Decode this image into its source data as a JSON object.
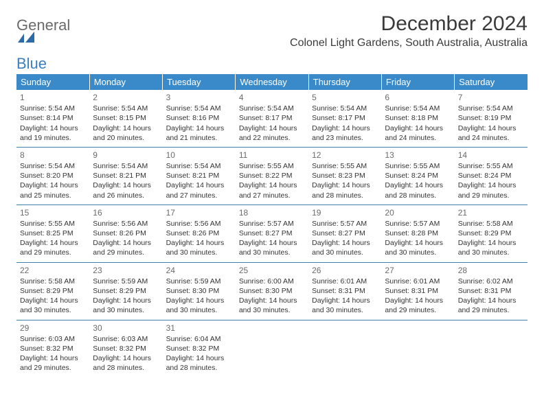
{
  "logo": {
    "part1": "General",
    "part2": "Blue"
  },
  "title": "December 2024",
  "subtitle": "Colonel Light Gardens, South Australia, Australia",
  "colors": {
    "header_bg": "#3a8ac9",
    "header_text": "#ffffff",
    "border": "#3a7fb0",
    "logo_gray": "#6a6a6a",
    "logo_blue": "#3a7fc0",
    "body_text": "#333333",
    "background": "#ffffff"
  },
  "weekdays": [
    "Sunday",
    "Monday",
    "Tuesday",
    "Wednesday",
    "Thursday",
    "Friday",
    "Saturday"
  ],
  "days": [
    {
      "n": 1,
      "sr": "5:54 AM",
      "ss": "8:14 PM",
      "dl": "14 hours and 19 minutes."
    },
    {
      "n": 2,
      "sr": "5:54 AM",
      "ss": "8:15 PM",
      "dl": "14 hours and 20 minutes."
    },
    {
      "n": 3,
      "sr": "5:54 AM",
      "ss": "8:16 PM",
      "dl": "14 hours and 21 minutes."
    },
    {
      "n": 4,
      "sr": "5:54 AM",
      "ss": "8:17 PM",
      "dl": "14 hours and 22 minutes."
    },
    {
      "n": 5,
      "sr": "5:54 AM",
      "ss": "8:17 PM",
      "dl": "14 hours and 23 minutes."
    },
    {
      "n": 6,
      "sr": "5:54 AM",
      "ss": "8:18 PM",
      "dl": "14 hours and 24 minutes."
    },
    {
      "n": 7,
      "sr": "5:54 AM",
      "ss": "8:19 PM",
      "dl": "14 hours and 24 minutes."
    },
    {
      "n": 8,
      "sr": "5:54 AM",
      "ss": "8:20 PM",
      "dl": "14 hours and 25 minutes."
    },
    {
      "n": 9,
      "sr": "5:54 AM",
      "ss": "8:21 PM",
      "dl": "14 hours and 26 minutes."
    },
    {
      "n": 10,
      "sr": "5:54 AM",
      "ss": "8:21 PM",
      "dl": "14 hours and 27 minutes."
    },
    {
      "n": 11,
      "sr": "5:55 AM",
      "ss": "8:22 PM",
      "dl": "14 hours and 27 minutes."
    },
    {
      "n": 12,
      "sr": "5:55 AM",
      "ss": "8:23 PM",
      "dl": "14 hours and 28 minutes."
    },
    {
      "n": 13,
      "sr": "5:55 AM",
      "ss": "8:24 PM",
      "dl": "14 hours and 28 minutes."
    },
    {
      "n": 14,
      "sr": "5:55 AM",
      "ss": "8:24 PM",
      "dl": "14 hours and 29 minutes."
    },
    {
      "n": 15,
      "sr": "5:55 AM",
      "ss": "8:25 PM",
      "dl": "14 hours and 29 minutes."
    },
    {
      "n": 16,
      "sr": "5:56 AM",
      "ss": "8:26 PM",
      "dl": "14 hours and 29 minutes."
    },
    {
      "n": 17,
      "sr": "5:56 AM",
      "ss": "8:26 PM",
      "dl": "14 hours and 30 minutes."
    },
    {
      "n": 18,
      "sr": "5:57 AM",
      "ss": "8:27 PM",
      "dl": "14 hours and 30 minutes."
    },
    {
      "n": 19,
      "sr": "5:57 AM",
      "ss": "8:27 PM",
      "dl": "14 hours and 30 minutes."
    },
    {
      "n": 20,
      "sr": "5:57 AM",
      "ss": "8:28 PM",
      "dl": "14 hours and 30 minutes."
    },
    {
      "n": 21,
      "sr": "5:58 AM",
      "ss": "8:29 PM",
      "dl": "14 hours and 30 minutes."
    },
    {
      "n": 22,
      "sr": "5:58 AM",
      "ss": "8:29 PM",
      "dl": "14 hours and 30 minutes."
    },
    {
      "n": 23,
      "sr": "5:59 AM",
      "ss": "8:29 PM",
      "dl": "14 hours and 30 minutes."
    },
    {
      "n": 24,
      "sr": "5:59 AM",
      "ss": "8:30 PM",
      "dl": "14 hours and 30 minutes."
    },
    {
      "n": 25,
      "sr": "6:00 AM",
      "ss": "8:30 PM",
      "dl": "14 hours and 30 minutes."
    },
    {
      "n": 26,
      "sr": "6:01 AM",
      "ss": "8:31 PM",
      "dl": "14 hours and 30 minutes."
    },
    {
      "n": 27,
      "sr": "6:01 AM",
      "ss": "8:31 PM",
      "dl": "14 hours and 29 minutes."
    },
    {
      "n": 28,
      "sr": "6:02 AM",
      "ss": "8:31 PM",
      "dl": "14 hours and 29 minutes."
    },
    {
      "n": 29,
      "sr": "6:03 AM",
      "ss": "8:32 PM",
      "dl": "14 hours and 29 minutes."
    },
    {
      "n": 30,
      "sr": "6:03 AM",
      "ss": "8:32 PM",
      "dl": "14 hours and 28 minutes."
    },
    {
      "n": 31,
      "sr": "6:04 AM",
      "ss": "8:32 PM",
      "dl": "14 hours and 28 minutes."
    }
  ],
  "labels": {
    "sunrise": "Sunrise:",
    "sunset": "Sunset:",
    "daylight": "Daylight:"
  },
  "layout": {
    "start_weekday": 0,
    "cols": 7
  }
}
